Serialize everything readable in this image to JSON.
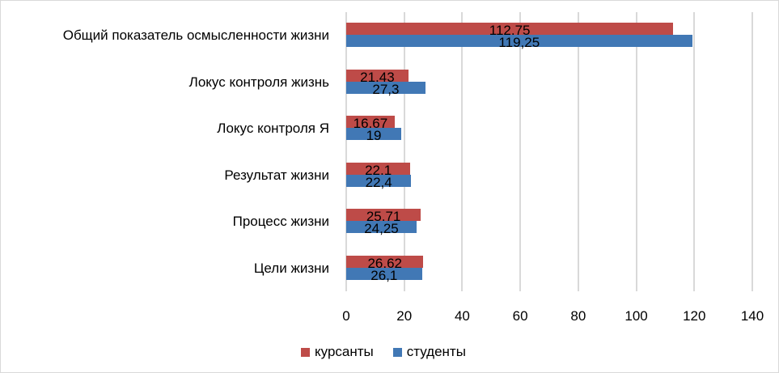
{
  "chart_data": {
    "type": "bar",
    "orientation": "horizontal",
    "title": "",
    "xlabel": "",
    "ylabel": "",
    "xlim": [
      0,
      140
    ],
    "x_ticks": [
      "0",
      "20",
      "40",
      "60",
      "80",
      "100",
      "120",
      "140"
    ],
    "grid": true,
    "legend_position": "bottom",
    "categories": [
      "Общий показатель осмысленности жизни",
      "Локус контроля жизнь",
      "Локус контроля Я",
      "Результат жизни",
      "Процесс жизни",
      "Цели жизни"
    ],
    "series": [
      {
        "name": "курсанты",
        "color": "#be4b48",
        "values": [
          112.75,
          21.43,
          16.67,
          22.1,
          25.71,
          26.62
        ],
        "labels": [
          "112,75",
          "21,43",
          "16,67",
          "22,1",
          "25,71",
          "26,62"
        ]
      },
      {
        "name": "студенты",
        "color": "#4178b5",
        "values": [
          119.25,
          27.3,
          19,
          22.4,
          24.25,
          26.1
        ],
        "labels": [
          "119,25",
          "27,3",
          "19",
          "22,4",
          "24,25",
          "26,1"
        ]
      }
    ]
  }
}
